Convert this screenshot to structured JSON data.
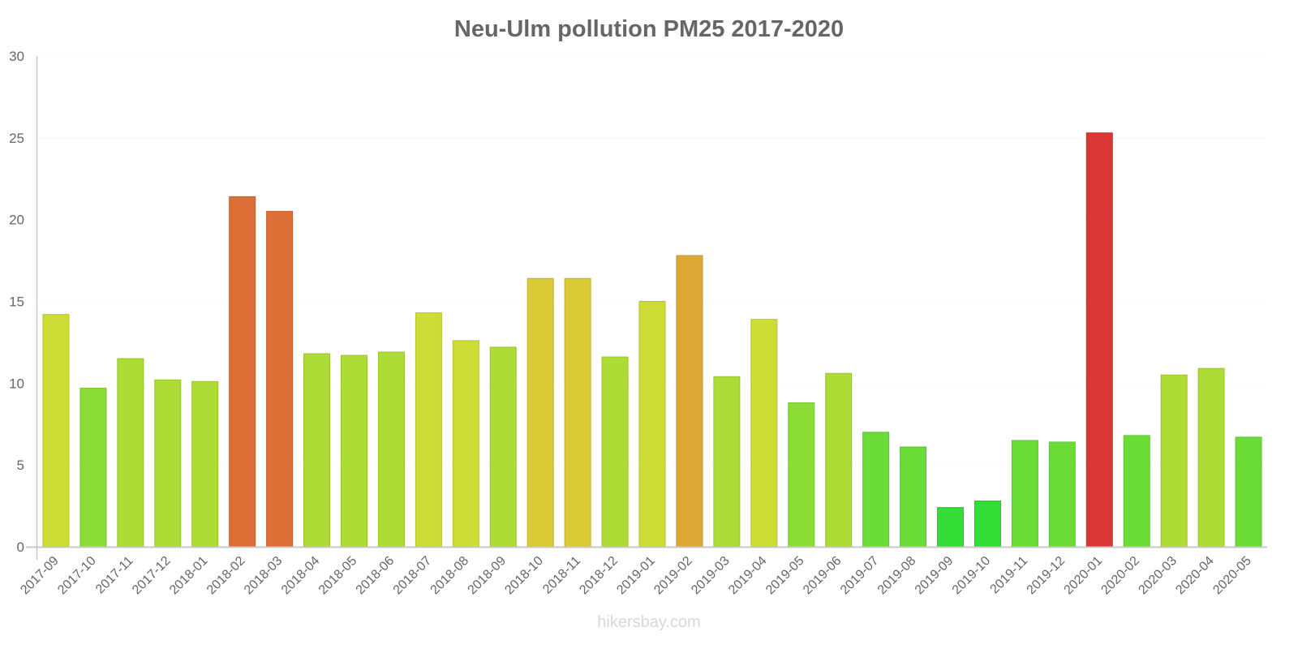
{
  "chart_data": {
    "type": "bar",
    "title": "Neu-Ulm pollution PM25 2017-2020",
    "xlabel": "",
    "ylabel": "",
    "ylim": [
      0,
      30
    ],
    "yticks": [
      0,
      5,
      10,
      15,
      20,
      25,
      30
    ],
    "grid": true,
    "legend": null,
    "watermark": "hikersbay.com",
    "categories": [
      "2017-09",
      "2017-10",
      "2017-11",
      "2017-12",
      "2018-01",
      "2018-02",
      "2018-03",
      "2018-04",
      "2018-05",
      "2018-06",
      "2018-07",
      "2018-08",
      "2018-09",
      "2018-10",
      "2018-11",
      "2018-12",
      "2019-01",
      "2019-02",
      "2019-03",
      "2019-04",
      "2019-05",
      "2019-06",
      "2019-07",
      "2019-08",
      "2019-09",
      "2019-10",
      "2019-11",
      "2019-12",
      "2020-01",
      "2020-02",
      "2020-03",
      "2020-04",
      "2020-05"
    ],
    "values": [
      14.2,
      9.7,
      11.5,
      10.2,
      10.1,
      21.4,
      20.5,
      11.8,
      11.7,
      11.9,
      14.3,
      12.6,
      12.2,
      16.4,
      16.4,
      11.6,
      15.0,
      17.8,
      10.4,
      13.9,
      8.8,
      10.6,
      7.0,
      6.1,
      2.4,
      2.8,
      6.5,
      6.4,
      25.3,
      6.8,
      10.5,
      10.9,
      6.7
    ],
    "colors": [
      "#cedc36",
      "#8bdc36",
      "#addc36",
      "#addc36",
      "#addc36",
      "#dd6f36",
      "#dd6f36",
      "#addc36",
      "#addc36",
      "#addc36",
      "#cedc36",
      "#cedc36",
      "#addc36",
      "#dacb36",
      "#dacb36",
      "#addc36",
      "#cedc36",
      "#dda836",
      "#addc36",
      "#cedc36",
      "#8bdc36",
      "#addc36",
      "#6bdc36",
      "#6bdc36",
      "#34dc36",
      "#34dc36",
      "#6bdc36",
      "#6bdc36",
      "#db3636",
      "#6bdc36",
      "#addc36",
      "#addc36",
      "#6bdc36"
    ]
  },
  "colors": {
    "text": "#666666",
    "axis": "#c8c8c8",
    "grid": "#eeeeee",
    "watermark": "#d8d8d8"
  }
}
